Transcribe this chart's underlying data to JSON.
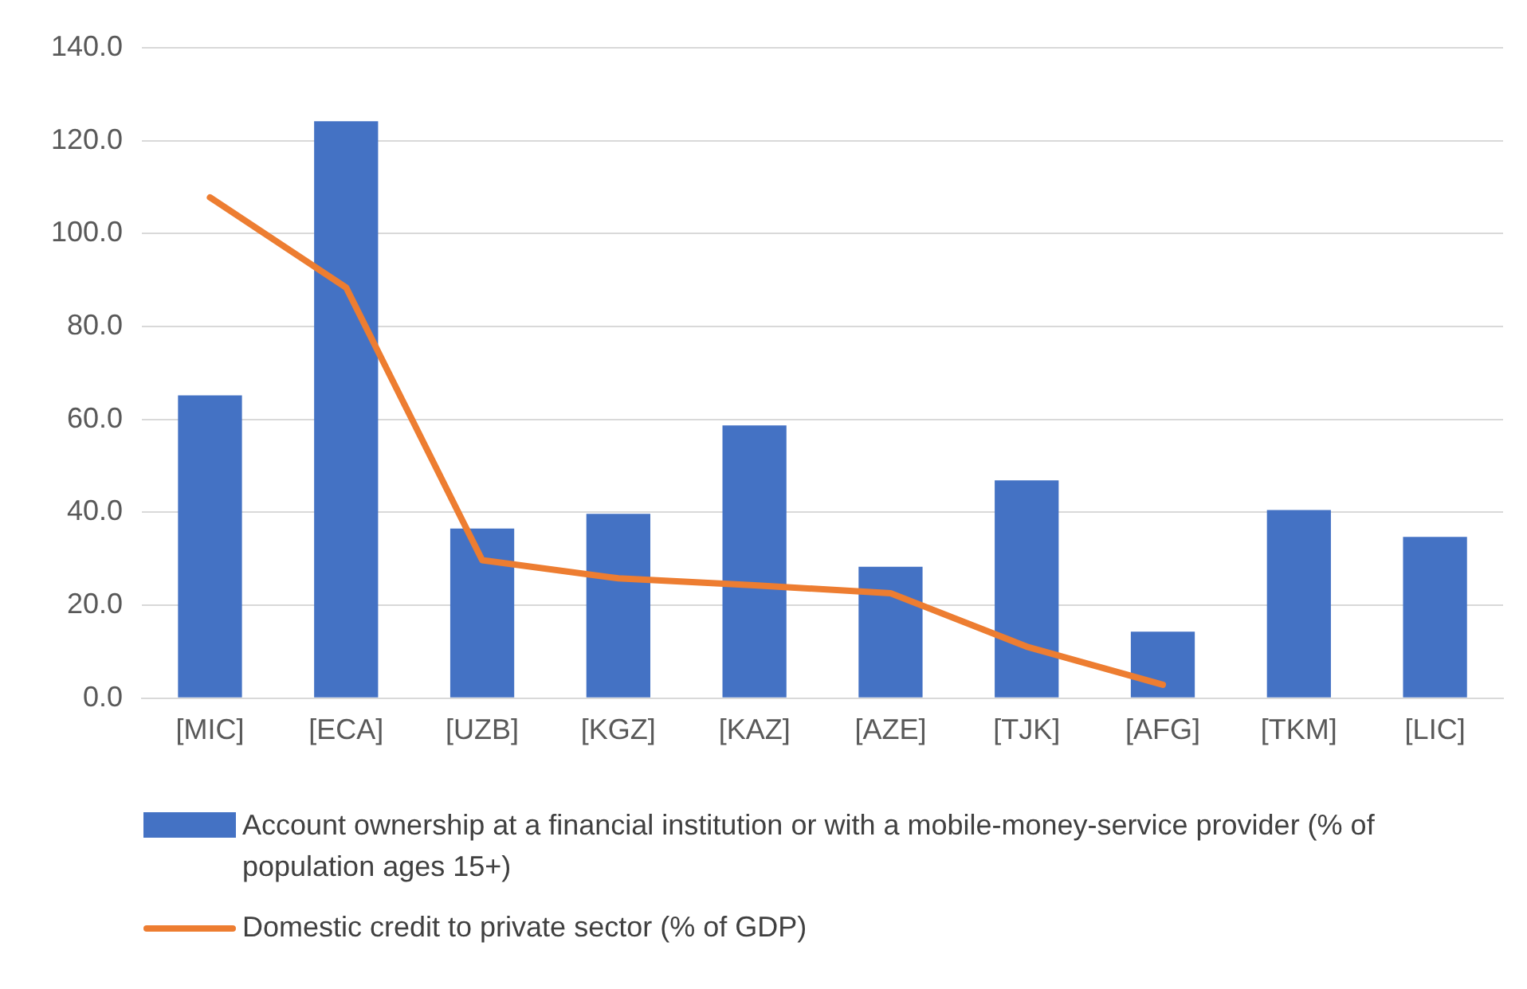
{
  "chart_data": {
    "type": "bar",
    "categories": [
      "[MIC]",
      "[ECA]",
      "[UZB]",
      "[KGZ]",
      "[KAZ]",
      "[AZE]",
      "[TJK]",
      "[AFG]",
      "[TKM]",
      "[LIC]"
    ],
    "series": [
      {
        "name": "Account ownership at a financial institution or with a mobile-money-service provider (% of population ages 15+)",
        "color": "#4472c4",
        "values": [
          65.2,
          124.2,
          36.5,
          39.7,
          58.7,
          28.3,
          46.9,
          14.3,
          40.5,
          34.7
        ]
      },
      {
        "name": "Domestic credit to private sector (% of GDP)",
        "type": "line",
        "color": "#ed7d31",
        "values": [
          107.8,
          88.4,
          29.7,
          25.8,
          24.3,
          22.6,
          11.1,
          2.9,
          null,
          null
        ]
      }
    ],
    "ylim": [
      0,
      140
    ],
    "yticks": [
      {
        "value": 0,
        "label": "0.0"
      },
      {
        "value": 20,
        "label": "20.0"
      },
      {
        "value": 40,
        "label": "40.0"
      },
      {
        "value": 60,
        "label": "60.0"
      },
      {
        "value": 80,
        "label": "80.0"
      },
      {
        "value": 100,
        "label": "100.0"
      },
      {
        "value": 120,
        "label": "120.0"
      },
      {
        "value": 140,
        "label": "140.0"
      }
    ],
    "grid": "y",
    "legend": "bottom",
    "marker": "none"
  }
}
